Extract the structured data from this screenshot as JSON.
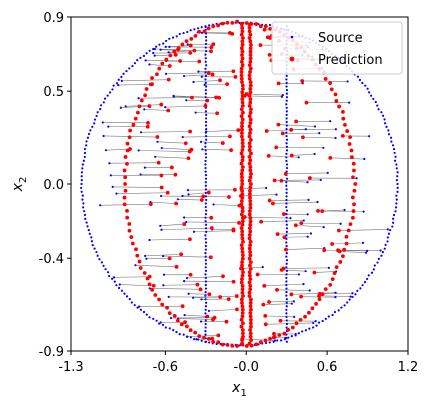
{
  "chart_data": {
    "type": "scatter",
    "xlabel": "x",
    "xlabel_sub": "1",
    "ylabel": "x",
    "ylabel_sub": "2",
    "xlim": [
      -1.3,
      1.2
    ],
    "ylim": [
      -0.9,
      0.9
    ],
    "x_ticks": [
      -1.3,
      -0.6,
      0.0,
      0.6,
      1.2
    ],
    "x_tick_labels": [
      "-1.3",
      "-0.6",
      "-0.0",
      "0.6",
      "1.2"
    ],
    "y_ticks": [
      -0.9,
      -0.4,
      0.0,
      0.5,
      0.9
    ],
    "y_tick_labels": [
      "-0.9",
      "-0.4",
      "0.0",
      "0.5",
      "0.9"
    ],
    "grid": false,
    "legend_position": "top-right",
    "series": [
      {
        "name": "Source",
        "color": "#0000ff",
        "marker": "small-dot"
      },
      {
        "name": "Prediction",
        "color": "#ff0000",
        "marker": "dot"
      }
    ],
    "connector_color": "#555555",
    "structure": {
      "source_ellipse": {
        "center": [
          -0.05,
          0.0
        ],
        "rx": 1.17,
        "ry": 0.87
      },
      "source_vertical_lines_x": [
        -0.3,
        0.3
      ],
      "prediction_ellipse": {
        "center": [
          -0.05,
          0.0
        ],
        "rx": 0.85,
        "ry": 0.87
      },
      "prediction_vertical_lines_x": [
        -0.03,
        0.03
      ],
      "pair_count": 160
    }
  }
}
